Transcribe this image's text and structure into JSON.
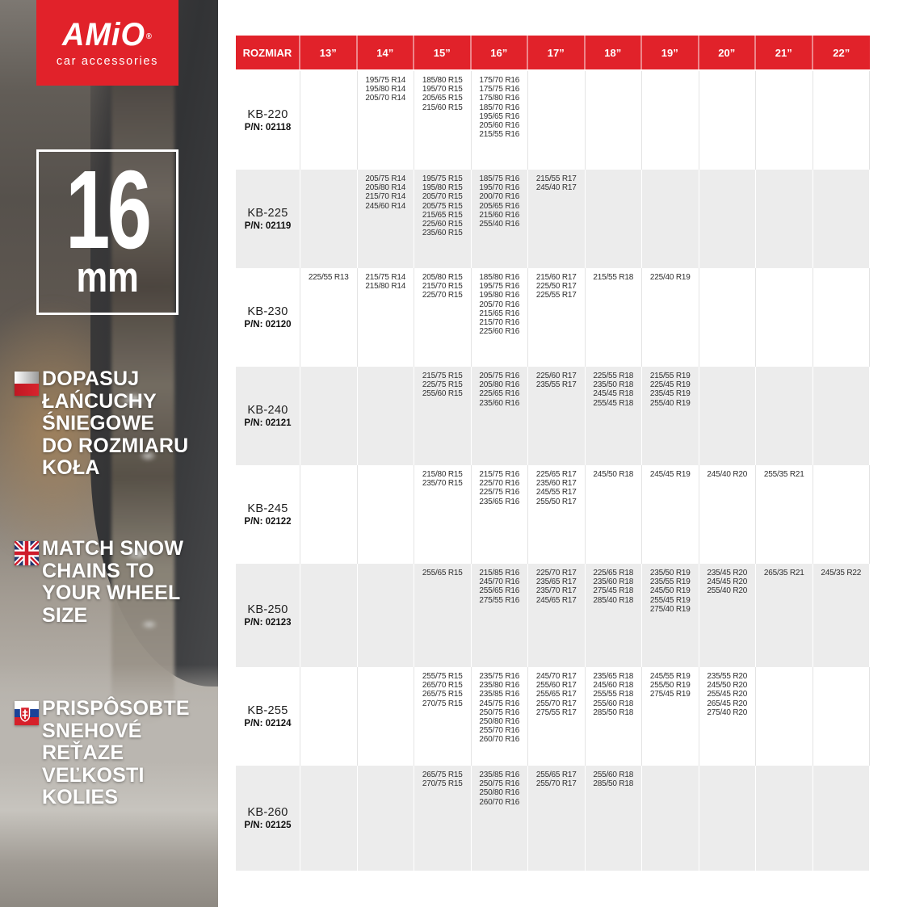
{
  "brand": {
    "name": "AMiO",
    "registered_mark": "®",
    "tagline": "car accessories",
    "red": "#e1222a"
  },
  "badge": {
    "value": "16",
    "unit": "mm"
  },
  "sidebar": {
    "messages": [
      {
        "language": "polish",
        "flag_icon": "poland-flag",
        "lines": [
          "DOPASUJ",
          "ŁAŃCUCHY",
          "ŚNIEGOWE",
          "DO ROZMIARU",
          "KOŁA"
        ]
      },
      {
        "language": "english",
        "flag_icon": "uk-flag",
        "lines": [
          "MATCH SNOW",
          "CHAINS TO",
          "YOUR WHEEL",
          "SIZE"
        ]
      },
      {
        "language": "slovak",
        "flag_icon": "slovakia-flag",
        "lines": [
          "PRISPÔSOBTE",
          "SNEHOVÉ",
          "REŤAZE",
          "VEĽKOSTI",
          "KOLIES"
        ]
      }
    ]
  },
  "table": {
    "header_color": "#e1222a",
    "stripe_color": "#ececec",
    "header": [
      "ROZMIAR",
      "13”",
      "14”",
      "15”",
      "16”",
      "17”",
      "18”",
      "19”",
      "20”",
      "21”",
      "22”"
    ],
    "rows": [
      {
        "model": "KB-220",
        "pn_label": "P/N:",
        "pn_value": "02118",
        "cells": [
          [],
          [
            "195/75 R14",
            "195/80 R14",
            "205/70 R14"
          ],
          [
            "185/80 R15",
            "195/70 R15",
            "205/65 R15",
            "215/60 R15"
          ],
          [
            "175/70 R16",
            "175/75 R16",
            "175/80 R16",
            "185/70 R16",
            "195/65 R16",
            "205/60 R16",
            "215/55 R16"
          ],
          [],
          [],
          [],
          [],
          [],
          []
        ]
      },
      {
        "model": "KB-225",
        "pn_label": "P/N:",
        "pn_value": "02119",
        "cells": [
          [],
          [
            "205/75 R14",
            "205/80 R14",
            "215/70 R14",
            "245/60 R14"
          ],
          [
            "195/75 R15",
            "195/80 R15",
            "205/70 R15",
            "205/75 R15",
            "215/65 R15",
            "225/60 R15",
            "235/60 R15"
          ],
          [
            "185/75 R16",
            "195/70 R16",
            "200/70 R16",
            "205/65 R16",
            "215/60 R16",
            "255/40 R16"
          ],
          [
            "215/55 R17",
            "245/40 R17"
          ],
          [],
          [],
          [],
          [],
          []
        ]
      },
      {
        "model": "KB-230",
        "pn_label": "P/N:",
        "pn_value": "02120",
        "cells": [
          [
            "225/55 R13"
          ],
          [
            "215/75 R14",
            "215/80 R14"
          ],
          [
            "205/80 R15",
            "215/70 R15",
            "225/70 R15"
          ],
          [
            "185/80 R16",
            "195/75 R16",
            "195/80 R16",
            "205/70 R16",
            "215/65 R16",
            "215/70 R16",
            "225/60 R16"
          ],
          [
            "215/60 R17",
            "225/50 R17",
            "225/55 R17"
          ],
          [
            "215/55 R18"
          ],
          [
            "225/40 R19"
          ],
          [],
          [],
          []
        ]
      },
      {
        "model": "KB-240",
        "pn_label": "P/N:",
        "pn_value": "02121",
        "cells": [
          [],
          [],
          [
            "215/75 R15",
            "225/75 R15",
            "255/60 R15"
          ],
          [
            "205/75 R16",
            "205/80 R16",
            "225/65 R16",
            "235/60 R16"
          ],
          [
            "225/60 R17",
            "235/55 R17"
          ],
          [
            "225/55 R18",
            "235/50 R18",
            "245/45 R18",
            "255/45 R18"
          ],
          [
            "215/55 R19",
            "225/45 R19",
            "235/45 R19",
            "255/40 R19"
          ],
          [],
          [],
          []
        ]
      },
      {
        "model": "KB-245",
        "pn_label": "P/N:",
        "pn_value": "02122",
        "cells": [
          [],
          [],
          [
            "215/80 R15",
            "235/70 R15"
          ],
          [
            "215/75 R16",
            "225/70 R16",
            "225/75 R16",
            "235/65 R16"
          ],
          [
            "225/65 R17",
            "235/60 R17",
            "245/55 R17",
            "255/50 R17"
          ],
          [
            "245/50 R18"
          ],
          [
            "245/45 R19"
          ],
          [
            "245/40 R20"
          ],
          [
            "255/35 R21"
          ],
          []
        ]
      },
      {
        "model": "KB-250",
        "pn_label": "P/N:",
        "pn_value": "02123",
        "cells": [
          [],
          [],
          [
            "255/65 R15"
          ],
          [
            "215/85 R16",
            "245/70 R16",
            "255/65 R16",
            "275/55 R16"
          ],
          [
            "225/70 R17",
            "235/65 R17",
            "235/70 R17",
            "245/65 R17"
          ],
          [
            "225/65 R18",
            "235/60 R18",
            "275/45 R18",
            "285/40 R18"
          ],
          [
            "235/50 R19",
            "235/55 R19",
            "245/50 R19",
            "255/45 R19",
            "275/40 R19"
          ],
          [
            "235/45 R20",
            "245/45 R20",
            "255/40 R20"
          ],
          [
            "265/35 R21"
          ],
          [
            "245/35 R22"
          ]
        ]
      },
      {
        "model": "KB-255",
        "pn_label": "P/N:",
        "pn_value": "02124",
        "cells": [
          [],
          [],
          [
            "255/75 R15",
            "265/70 R15",
            "265/75 R15",
            "270/75 R15"
          ],
          [
            "235/75 R16",
            "235/80 R16",
            "235/85 R16",
            "245/75 R16",
            "250/75 R16",
            "250/80 R16",
            "255/70 R16",
            "260/70 R16"
          ],
          [
            "245/70 R17",
            "255/60 R17",
            "255/65 R17",
            "255/70 R17",
            "275/55 R17"
          ],
          [
            "235/65 R18",
            "245/60 R18",
            "255/55 R18",
            "255/60 R18",
            "285/50 R18"
          ],
          [
            "245/55 R19",
            "255/50 R19",
            "275/45 R19"
          ],
          [
            "235/55 R20",
            "245/50 R20",
            "255/45 R20",
            "265/45 R20",
            "275/40 R20"
          ],
          [],
          []
        ]
      },
      {
        "model": "KB-260",
        "pn_label": "P/N:",
        "pn_value": "02125",
        "cells": [
          [],
          [],
          [
            "265/75 R15",
            "270/75 R15"
          ],
          [
            "235/85 R16",
            "250/75 R16",
            "250/80 R16",
            "260/70 R16"
          ],
          [
            "255/65 R17",
            "255/70 R17"
          ],
          [
            "255/60 R18",
            "285/50 R18"
          ],
          [],
          [],
          [],
          []
        ]
      }
    ]
  }
}
